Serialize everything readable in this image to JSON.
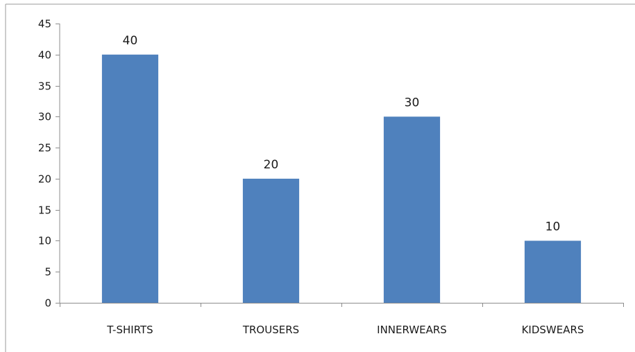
{
  "chart_data": {
    "type": "bar",
    "categories": [
      "T-SHIRTS",
      "TROUSERS",
      "INNERWEARS",
      "KIDSWEARS"
    ],
    "values": [
      40,
      20,
      30,
      10
    ],
    "title": "",
    "xlabel": "",
    "ylabel": "",
    "ylim": [
      0,
      45
    ],
    "yticks": [
      0,
      5,
      10,
      15,
      20,
      25,
      30,
      35,
      40,
      45
    ],
    "data_labels": true,
    "grid": false,
    "legend": "none",
    "colors": {
      "bar": "#4f81bd",
      "axis": "#8c8c8c",
      "frame": "#9a9a9a"
    }
  }
}
